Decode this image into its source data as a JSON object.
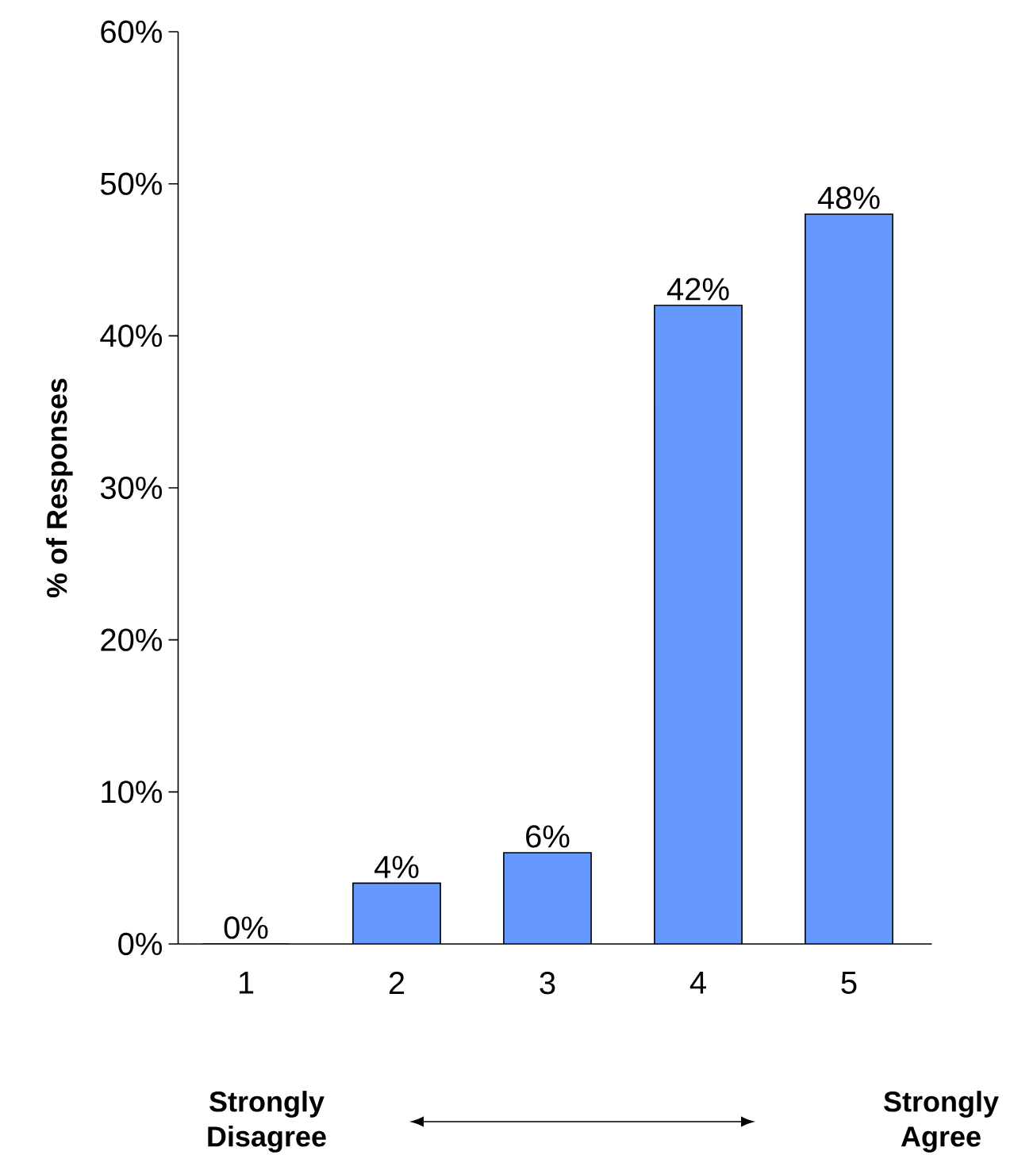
{
  "chart_data": {
    "type": "bar",
    "ylabel": "% of Responses",
    "categories": [
      "1",
      "2",
      "3",
      "4",
      "5"
    ],
    "values": [
      0,
      4,
      6,
      42,
      48
    ],
    "value_labels": [
      "0%",
      "4%",
      "6%",
      "42%",
      "48%"
    ],
    "color": "#6699ff",
    "ylim": [
      0,
      60
    ],
    "yticks": [
      {
        "value": 0,
        "label": "0%"
      },
      {
        "value": 10,
        "label": "10%"
      },
      {
        "value": 20,
        "label": "20%"
      },
      {
        "value": 30,
        "label": "30%"
      },
      {
        "value": 40,
        "label": "40%"
      },
      {
        "value": 50,
        "label": "50%"
      },
      {
        "value": 60,
        "label": "60%"
      }
    ],
    "annotations": [
      "Strongly Disagree",
      "Strongly Agree"
    ]
  }
}
